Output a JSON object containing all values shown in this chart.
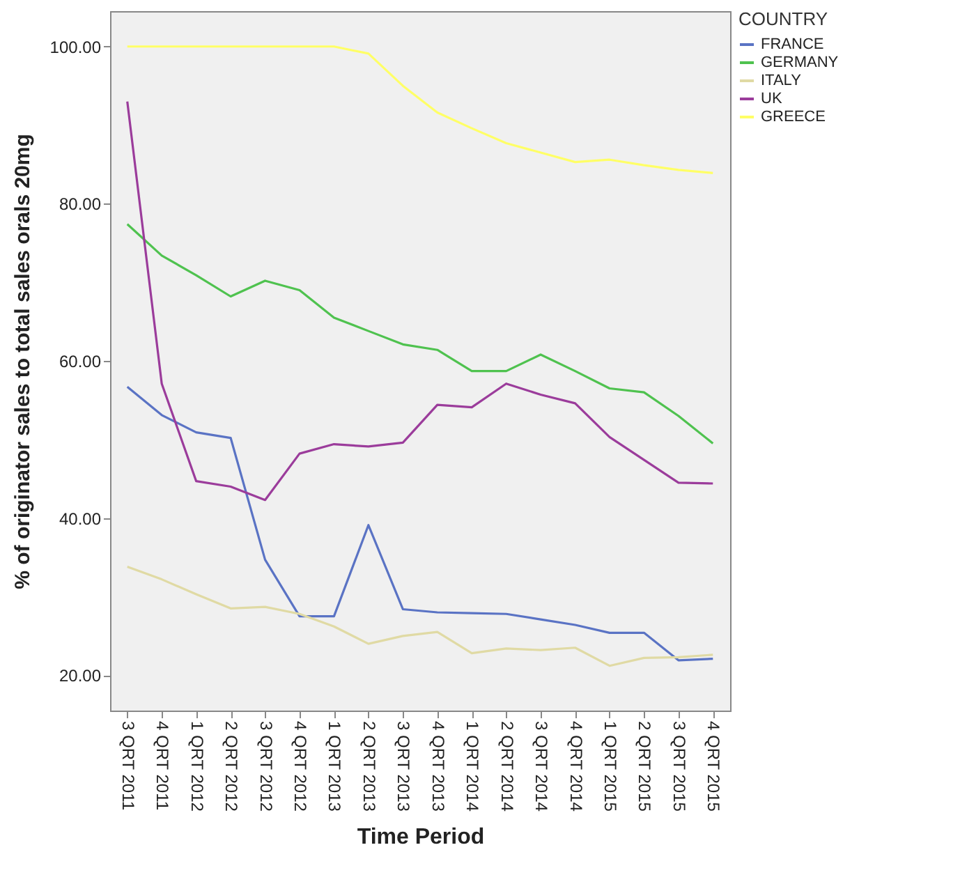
{
  "chart_data": {
    "type": "line",
    "xlabel": "Time Period",
    "ylabel": "% of originator sales to total sales orals 20mg",
    "legend_title": "COUNTRY",
    "legend": "right",
    "grid": false,
    "categories": [
      "3 QRT 2011",
      "4 QRT 2011",
      "1 QRT 2012",
      "2 QRT 2012",
      "3 QRT 2012",
      "4 QRT 2012",
      "1 QRT 2013",
      "2 QRT 2013",
      "3 QRT 2013",
      "4 QRT 2013",
      "1 QRT 2014",
      "2 QRT 2014",
      "3 QRT 2014",
      "4 QRT 2014",
      "1 QRT 2015",
      "2 QRT 2015",
      "3 QRT 2015",
      "4 QRT 2015"
    ],
    "ylim": [
      15.5,
      104.5
    ],
    "yticks": [
      {
        "value": 20,
        "label": "20.00"
      },
      {
        "value": 40,
        "label": "40.00"
      },
      {
        "value": 60,
        "label": "60.00"
      },
      {
        "value": 80,
        "label": "80.00"
      },
      {
        "value": 100,
        "label": "100.00"
      }
    ],
    "series": [
      {
        "name": "FRANCE",
        "color": "#5a73c4",
        "values": [
          56.7,
          53.1,
          50.9,
          50.2,
          34.7,
          27.5,
          27.5,
          39.1,
          28.4,
          28.0,
          27.9,
          27.8,
          27.1,
          26.4,
          25.4,
          25.4,
          21.9,
          22.1
        ]
      },
      {
        "name": "GERMANY",
        "color": "#4fc24f",
        "values": [
          77.4,
          73.4,
          70.9,
          68.2,
          70.2,
          69.0,
          65.5,
          63.8,
          62.1,
          61.4,
          58.7,
          58.7,
          60.8,
          58.7,
          56.5,
          56.0,
          53.0,
          49.5
        ]
      },
      {
        "name": "ITALY",
        "color": "#e0daa4",
        "values": [
          33.8,
          32.2,
          30.3,
          28.5,
          28.7,
          27.8,
          26.2,
          24.0,
          25.0,
          25.5,
          22.8,
          23.4,
          23.2,
          23.5,
          21.2,
          22.2,
          22.3,
          22.6
        ]
      },
      {
        "name": "UK",
        "color": "#9b3c9b",
        "values": [
          93.0,
          57.1,
          44.7,
          44.0,
          42.3,
          48.2,
          49.4,
          49.1,
          49.6,
          54.4,
          54.1,
          57.1,
          55.7,
          54.6,
          50.3,
          47.4,
          44.5,
          44.4
        ]
      },
      {
        "name": "GREECE",
        "color": "#ffff66",
        "values": [
          100,
          100,
          100,
          100,
          100,
          100,
          100,
          99.1,
          95.0,
          91.6,
          89.6,
          87.7,
          86.5,
          85.3,
          85.6,
          84.9,
          84.3,
          83.9
        ]
      }
    ]
  }
}
